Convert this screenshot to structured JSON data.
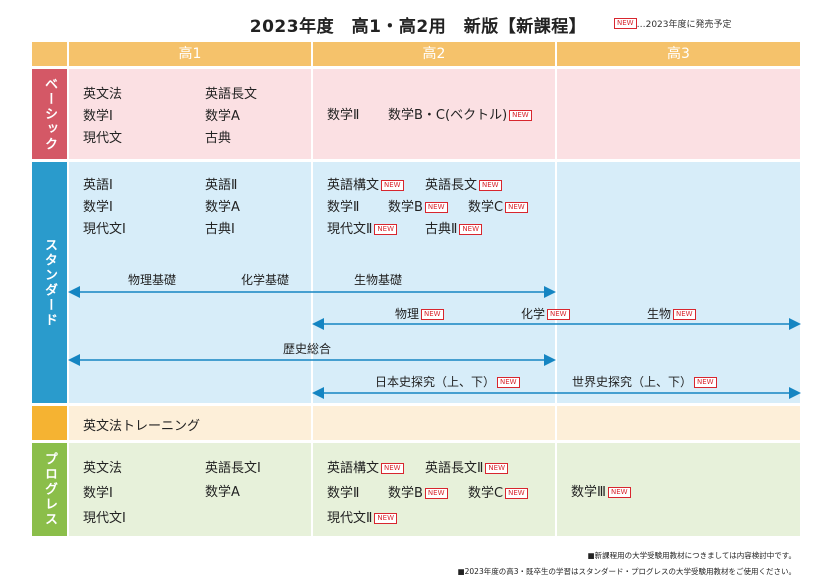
{
  "title": "2023年度　高1・高2用　新版【新課程】",
  "legend": {
    "badge": "NEW",
    "text": "…2023年度に発売予定"
  },
  "columns": [
    "高1",
    "高2",
    "高3"
  ],
  "colors": {
    "header": "#f5c26b",
    "basic": "#d45866",
    "standard": "#2a9bcc",
    "training": "#f5b332",
    "progress": "#8bbe4a",
    "basic_bg": "#fbe0e3",
    "standard_bg": "#d7edf9",
    "training_bg": "#fdefd9",
    "progress_bg": "#e7f1da",
    "new": "#d8262e"
  },
  "rows": {
    "basic": {
      "label": "ベーシック",
      "k1a": [
        "英文法",
        "数学Ⅰ",
        "現代文"
      ],
      "k1b": [
        "英語長文",
        "数学A",
        "古典"
      ],
      "k2": [
        "数学Ⅱ",
        "数学B・C(ベクトル)"
      ]
    },
    "standard": {
      "label": "スタンダード",
      "k1a": [
        "英語Ⅰ",
        "数学Ⅰ",
        "現代文Ⅰ"
      ],
      "k1b": [
        "英語Ⅱ",
        "数学A",
        "古典Ⅰ"
      ],
      "k2": [
        [
          "英語構文",
          "英語長文"
        ],
        [
          "数学Ⅱ",
          "数学B",
          "数学C"
        ],
        [
          "現代文Ⅱ",
          "古典Ⅱ"
        ]
      ],
      "span_basic": [
        "物理基礎",
        "化学基礎",
        "生物基礎"
      ],
      "span_sci": [
        "物理",
        "化学",
        "生物"
      ],
      "span_hist": "歴史総合",
      "span_jp": "日本史探究（上、下）",
      "span_world": "世界史探究（上、下）"
    },
    "training": {
      "k1": "英文法トレーニング"
    },
    "progress": {
      "label": "プログレス",
      "k1a": [
        "英文法",
        "数学Ⅰ",
        "現代文Ⅰ"
      ],
      "k1b": [
        "英語長文Ⅰ",
        "数学A"
      ],
      "k2": [
        [
          "英語構文",
          "英語長文Ⅱ"
        ],
        [
          "数学Ⅱ",
          "数学B",
          "数学C"
        ],
        [
          "現代文Ⅱ"
        ]
      ],
      "k3": "数学Ⅲ"
    }
  },
  "footnotes": [
    "■新課程用の大学受験用教材につきましては内容検討中です。",
    "■2023年度の高3・既卒生の学習はスタンダード・プログレスの大学受験用教材をご使用ください。"
  ]
}
